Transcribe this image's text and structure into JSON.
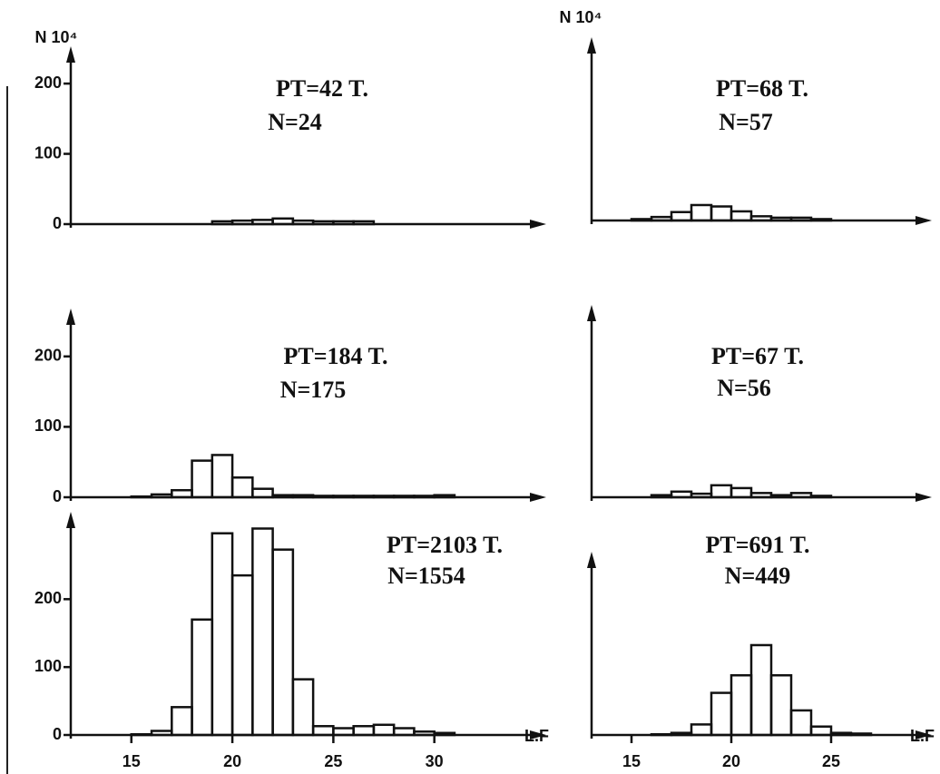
{
  "chart_data": [
    {
      "type": "histogram",
      "ylabel": "N 10⁴",
      "annotations": [
        "PT=42 T.",
        "N=24"
      ],
      "bins": [
        19,
        20,
        21,
        22,
        23,
        24,
        25,
        26,
        27
      ],
      "values": [
        4,
        5,
        6,
        8,
        5,
        4,
        4,
        4
      ],
      "xlim": [
        12,
        35
      ],
      "ylim": [
        0,
        235
      ],
      "yticks": [
        0,
        100,
        200
      ],
      "color": "#111111"
    },
    {
      "type": "histogram",
      "ylabel": "N 10⁴",
      "annotations": [
        "PT=68 T.",
        "N=57"
      ],
      "bins": [
        15,
        16,
        17,
        18,
        19,
        20,
        21,
        22,
        23,
        24,
        25
      ],
      "values": [
        2,
        5,
        12,
        22,
        20,
        13,
        6,
        4,
        4,
        2
      ],
      "xlim": [
        13,
        29.5
      ],
      "ylim": [
        0,
        243
      ],
      "color": "#111111"
    },
    {
      "type": "histogram",
      "annotations": [
        "PT=184 T.",
        "N=175"
      ],
      "bins": [
        15,
        16,
        17,
        18,
        19,
        20,
        21,
        22,
        23,
        24,
        25,
        26,
        27,
        28,
        29,
        30,
        31
      ],
      "values": [
        1,
        4,
        10,
        52,
        60,
        28,
        12,
        3,
        3,
        2,
        2,
        2,
        2,
        2,
        2,
        3
      ],
      "xlim": [
        12,
        35
      ],
      "ylim": [
        0,
        250
      ],
      "yticks": [
        0,
        100,
        200
      ],
      "color": "#111111"
    },
    {
      "type": "histogram",
      "annotations": [
        "PT=67 T.",
        "N=56"
      ],
      "bins": [
        16,
        17,
        18,
        19,
        20,
        21,
        22,
        23,
        24,
        25
      ],
      "values": [
        3,
        8,
        5,
        17,
        13,
        6,
        3,
        6,
        2
      ],
      "xlim": [
        13,
        29.5
      ],
      "ylim": [
        0,
        255
      ],
      "color": "#111111"
    },
    {
      "type": "histogram",
      "xlabel": "L.F",
      "annotations": [
        "PT=2103 T.",
        "N=1554"
      ],
      "bins": [
        15,
        16,
        17,
        18,
        19,
        20,
        21,
        22,
        23,
        24,
        25,
        26,
        27,
        28,
        29,
        30,
        31
      ],
      "values": [
        1,
        6,
        41,
        170,
        297,
        235,
        304,
        273,
        82,
        13,
        10,
        13,
        15,
        10,
        5,
        3
      ],
      "xlim": [
        12,
        35
      ],
      "ylim": [
        0,
        310
      ],
      "yticks": [
        0,
        100,
        200
      ],
      "xticks": [
        15,
        20,
        25,
        30
      ],
      "color": "#111111"
    },
    {
      "type": "histogram",
      "xlabel": "L.F",
      "annotations": [
        "PT=691 T.",
        "N=449"
      ],
      "bins": [
        16,
        17,
        18,
        19,
        20,
        21,
        22,
        23,
        24,
        25,
        26,
        27
      ],
      "values": [
        1,
        3,
        15,
        60,
        85,
        128,
        85,
        35,
        12,
        3,
        2
      ],
      "xlim": [
        13,
        29.5
      ],
      "ylim": [
        0,
        243
      ],
      "xticks": [
        15,
        20,
        25
      ],
      "color": "#111111"
    }
  ]
}
